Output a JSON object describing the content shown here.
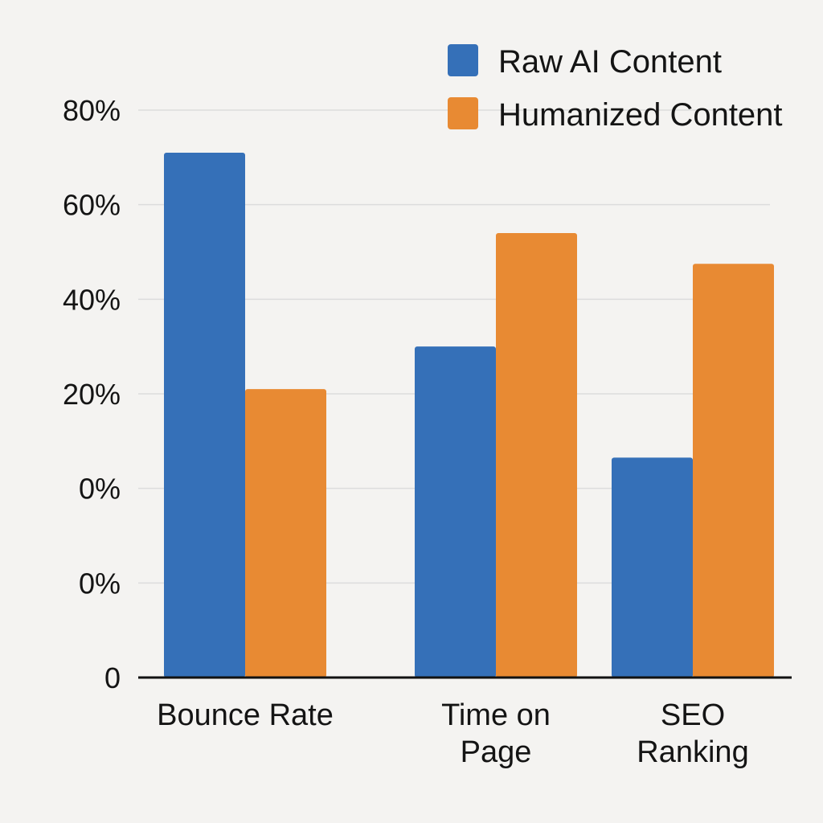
{
  "chart_data": {
    "type": "bar",
    "title": "",
    "xlabel": "",
    "ylabel": "",
    "categories": [
      [
        "Bounce Rate"
      ],
      [
        "Time on",
        "Page"
      ],
      [
        "SEO",
        "Ranking"
      ]
    ],
    "series": [
      {
        "name": "Raw AI Content",
        "color": "#3570b8",
        "values": [
          71,
          30,
          6.5
        ]
      },
      {
        "name": "Humanized Content",
        "color": "#e88a33",
        "values": [
          21,
          54,
          47.5
        ]
      }
    ],
    "y_tick_labels": [
      "0",
      "0%",
      "0%",
      "20%",
      "40%",
      "60%",
      "80%"
    ],
    "ylim": [
      -40,
      80
    ],
    "grid": true,
    "legend_position": "top-right"
  }
}
